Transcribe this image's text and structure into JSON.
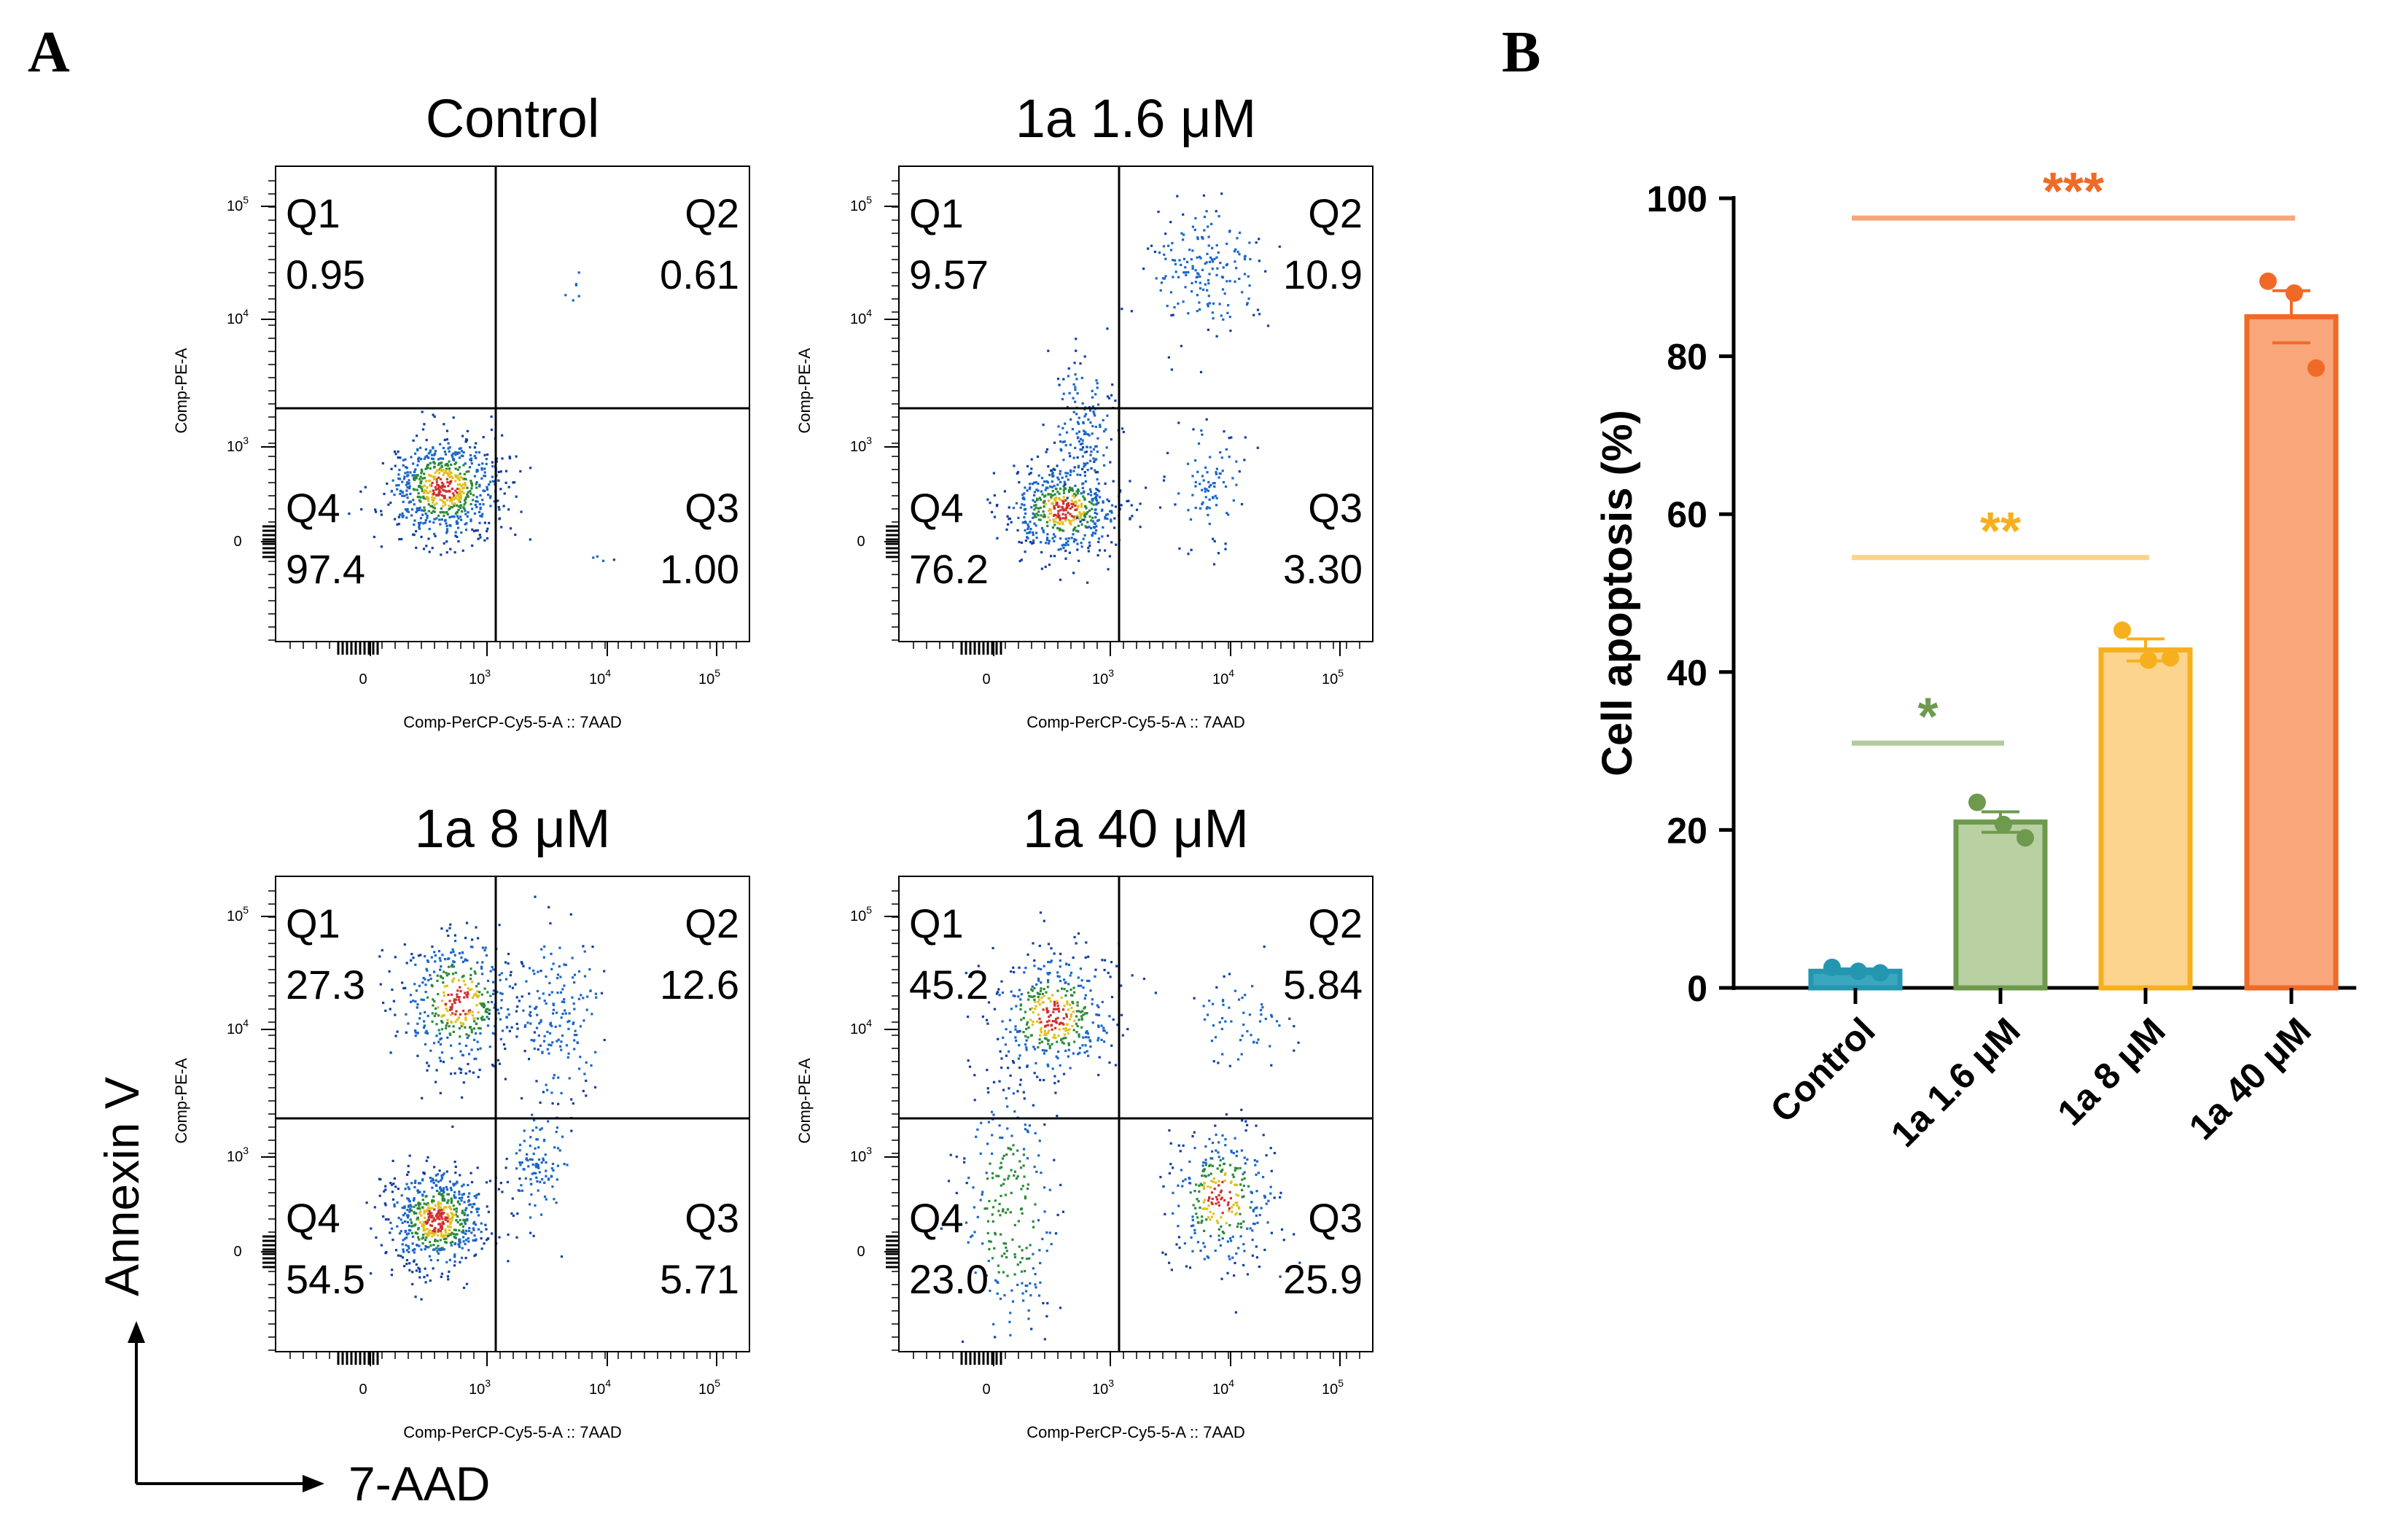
{
  "panel_a": {
    "label": "A",
    "y_axis_title": "Annexin V",
    "x_axis_title": "7-AAD",
    "plots": [
      {
        "title": "Control",
        "q1": "0.95",
        "q2": "0.61",
        "q3": "1.00",
        "q4": "97.4"
      },
      {
        "title": "1a 1.6 μM",
        "q1": "9.57",
        "q2": "10.9",
        "q3": "3.30",
        "q4": "76.2"
      },
      {
        "title": "1a 8 μM",
        "q1": "27.3",
        "q2": "12.6",
        "q3": "5.71",
        "q4": "54.5"
      },
      {
        "title": "1a 40 μM",
        "q1": "45.2",
        "q2": "5.84",
        "q3": "25.9",
        "q4": "23.0"
      }
    ],
    "quadrant_labels": [
      "Q1",
      "Q2",
      "Q3",
      "Q4"
    ],
    "plot_xlabel": "Comp-PerCP-Cy5-5-A :: 7AAD",
    "plot_ylabel": "Comp-PE-A",
    "tick_zero": "0",
    "tick_base": "10",
    "tick_exps": [
      "3",
      "4",
      "5"
    ]
  },
  "panel_b": {
    "label": "B"
  },
  "chart_data": {
    "type": "bar",
    "title": "",
    "xlabel": "",
    "ylabel": "Cell apoptosis (%)",
    "ylim": [
      0,
      100
    ],
    "yticks": [
      0,
      20,
      40,
      60,
      80,
      100
    ],
    "categories": [
      "Control",
      "1a 1.6 μM",
      "1a 8 μM",
      "1a 40 μM"
    ],
    "values": [
      2.1,
      21.0,
      42.8,
      85.0
    ],
    "errors": [
      0.3,
      1.3,
      1.4,
      3.3
    ],
    "points": [
      [
        2.6,
        2.1,
        1.9
      ],
      [
        23.5,
        20.7,
        19.0
      ],
      [
        45.3,
        41.5,
        41.8
      ],
      [
        89.5,
        88.0,
        78.5
      ]
    ],
    "fill_colors": [
      "#3aa7be",
      "#b8d0a2",
      "#fcd48e",
      "#f9a67a"
    ],
    "edge_colors": [
      "#2596b0",
      "#6e9a4e",
      "#f7b01d",
      "#f06a27"
    ],
    "significance": [
      {
        "label": "*",
        "from": 0,
        "to": 1,
        "y": 31,
        "color": "#6e9a4e",
        "line_color": "#b2cca0"
      },
      {
        "label": "**",
        "from": 0,
        "to": 2,
        "y": 54.5,
        "color": "#f7b01d",
        "line_color": "#fcd38a"
      },
      {
        "label": "***",
        "from": 0,
        "to": 3,
        "y": 97.5,
        "color": "#f06a27",
        "line_color": "#f8a57c"
      }
    ]
  }
}
